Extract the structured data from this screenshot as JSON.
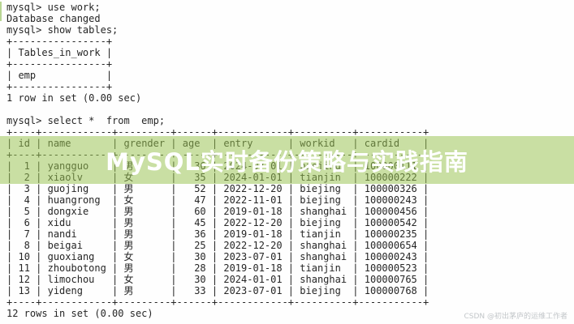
{
  "terminal": {
    "commands": {
      "use": "mysql> use work;",
      "changed": "Database changed",
      "show": "mysql> show tables;",
      "select": "mysql> select *  from  emp;"
    },
    "show_tables": {
      "header": "Tables_in_work",
      "rows": [
        "emp"
      ],
      "status": "1 row in set (0.00 sec)"
    },
    "emp": {
      "headers": [
        "id",
        "name",
        "grender",
        "age",
        "entry",
        "workid",
        "cardid"
      ],
      "rows": [
        [
          "1",
          "yangguo",
          "男",
          "36",
          "2024-07-01",
          "biejing",
          "100000111"
        ],
        [
          "2",
          "xiaolv",
          "女",
          "35",
          "2024-01-01",
          "tianjin",
          "100000222"
        ],
        [
          "3",
          "guojing",
          "男",
          "52",
          "2022-12-20",
          "biejing",
          "100000326"
        ],
        [
          "4",
          "huangrong",
          "女",
          "47",
          "2022-11-01",
          "biejing",
          "100000243"
        ],
        [
          "5",
          "dongxie",
          "男",
          "60",
          "2019-01-18",
          "shanghai",
          "100000456"
        ],
        [
          "6",
          "xidu",
          "男",
          "45",
          "2022-12-20",
          "biejing",
          "100000542"
        ],
        [
          "7",
          "nandi",
          "男",
          "36",
          "2019-01-18",
          "tianjin",
          "100000235"
        ],
        [
          "8",
          "beigai",
          "男",
          "25",
          "2022-12-20",
          "shanghai",
          "100000654"
        ],
        [
          "10",
          "guoxiang",
          "女",
          "30",
          "2023-07-01",
          "shanghai",
          "100000243"
        ],
        [
          "11",
          "zhoubotong",
          "男",
          "28",
          "2019-01-18",
          "tianjin",
          "100000523"
        ],
        [
          "12",
          "limochou",
          "女",
          "30",
          "2024-01-01",
          "shanghai",
          "100000765"
        ],
        [
          "13",
          "yideng",
          "男",
          "33",
          "2023-07-01",
          "biejing",
          "100000768"
        ]
      ],
      "status": "12 rows in set (0.00 sec)"
    }
  },
  "overlay": {
    "title": "MySQL实时备份策略与实践指南",
    "band_color": "#c9dfa6",
    "title_color": "#ffffff"
  },
  "watermark": "CSDN @初出茅庐的运维工作者",
  "colors": {
    "terminal_text": "#262626",
    "background": "#fefefe",
    "watermark_text": "#c2c6c9"
  }
}
